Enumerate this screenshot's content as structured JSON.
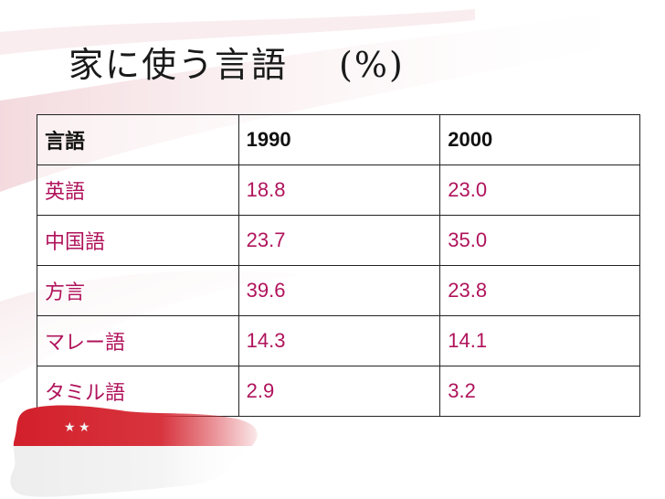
{
  "slide": {
    "title": "家に使う言語",
    "unit": "(%)"
  },
  "table": {
    "headers": [
      "言語",
      "1990",
      "2000"
    ],
    "rows": [
      [
        "英語",
        "18.8",
        "23.0"
      ],
      [
        "中国語",
        "23.7",
        "35.0"
      ],
      [
        "方言",
        "39.6",
        "23.8"
      ],
      [
        "マレー語",
        "14.3",
        "14.1"
      ],
      [
        "タミル語",
        "2.9",
        "3.2"
      ]
    ]
  },
  "colors": {
    "header_text": "#111111",
    "body_text": "#b0135b",
    "flag_red": "#d21f2b"
  },
  "decoration": {
    "flag_icon": "singapore-flag-map-icon",
    "stars_icon": "stars-icon"
  }
}
